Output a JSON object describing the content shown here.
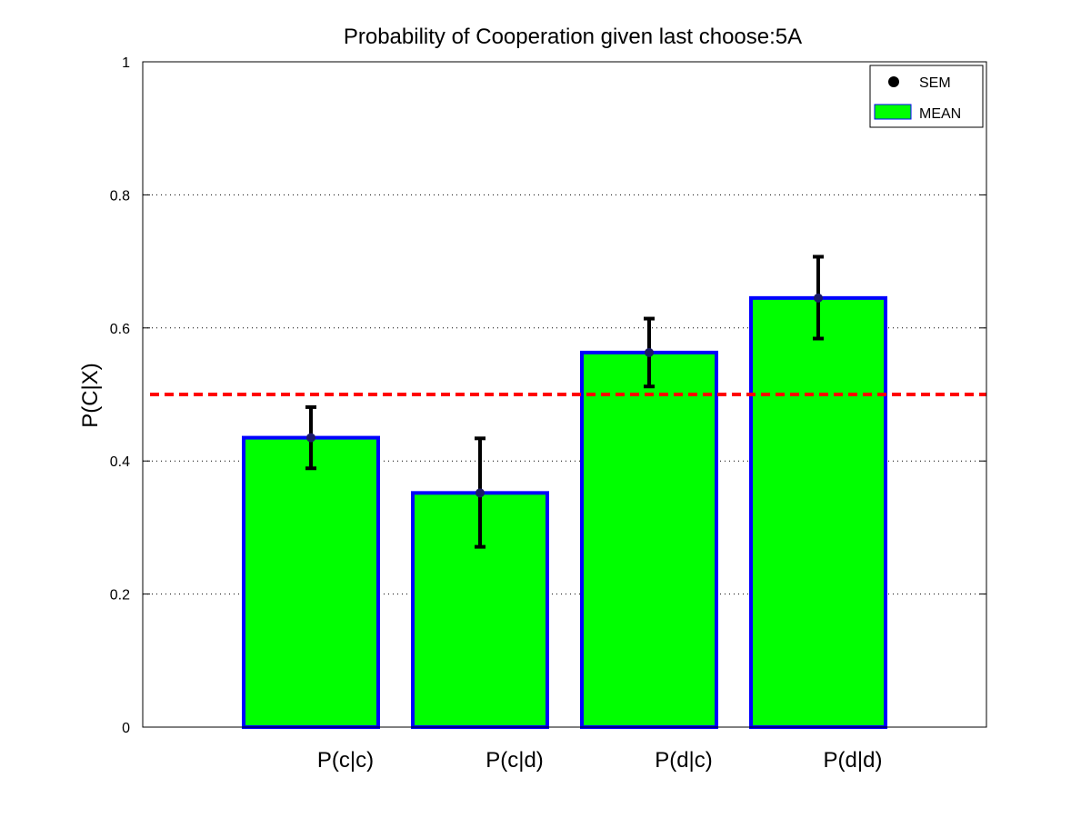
{
  "chart_data": {
    "type": "bar",
    "title": "Probability of Cooperation given last choose:5A",
    "xlabel": "",
    "ylabel": "P(C|X)",
    "categories": [
      "P(c|c)",
      "P(c|d)",
      "P(d|c)",
      "P(d|d)"
    ],
    "series": [
      {
        "name": "MEAN",
        "values": [
          0.435,
          0.352,
          0.563,
          0.645
        ]
      }
    ],
    "error_bars": {
      "name": "SEM",
      "lower": [
        0.389,
        0.271,
        0.512,
        0.584
      ],
      "upper": [
        0.481,
        0.434,
        0.614,
        0.707
      ]
    },
    "reference_line": {
      "y": 0.5,
      "color": "#ff0000",
      "style": "dashed"
    },
    "ylim": [
      0,
      1
    ],
    "yticks": [
      0,
      0.2,
      0.4,
      0.6,
      0.8,
      1
    ],
    "ytick_labels": [
      "0",
      "0.2",
      "0.4",
      "0.6",
      "0.8",
      "1"
    ],
    "grid": "horizontal dotted",
    "legend": {
      "position": "top-right",
      "entries": [
        "SEM",
        "MEAN"
      ]
    },
    "colors": {
      "bar_fill": "#00ff00",
      "bar_edge": "#0000ff",
      "error_bar": "#000000",
      "error_marker": "#1a1a66",
      "reference_line": "#ff0000",
      "grid": "#000000"
    }
  }
}
